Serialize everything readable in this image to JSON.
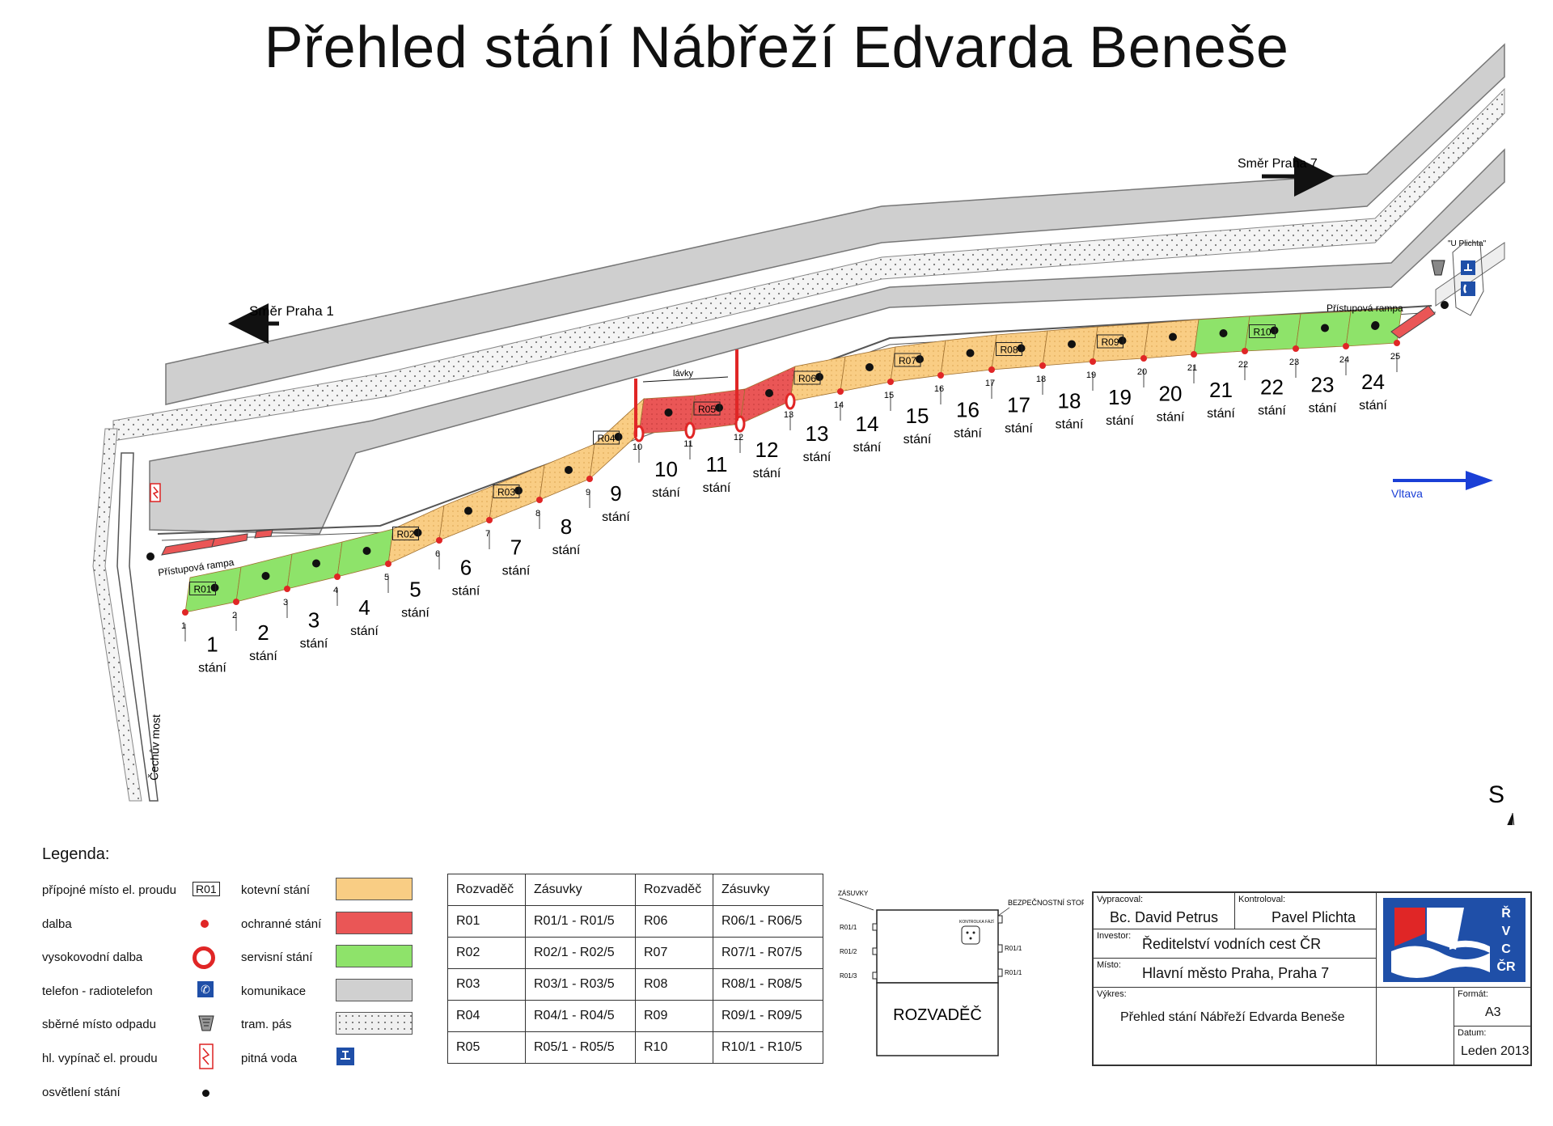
{
  "title": "Přehled stání Nábřeží Edvarda Beneše",
  "map_labels": {
    "direction_praha1": "Směr Praha 1",
    "direction_praha7": "Směr Praha 7",
    "ramp": "Přístupová rampa",
    "footbridges": "lávky",
    "river": "Vltava",
    "bridge": "Čechův most",
    "u_plichta": "\"U Plichta\"",
    "north": "S",
    "stani_word": "stání"
  },
  "berths": [
    {
      "n": "1",
      "kind": "service"
    },
    {
      "n": "2",
      "kind": "service"
    },
    {
      "n": "3",
      "kind": "service"
    },
    {
      "n": "4",
      "kind": "service"
    },
    {
      "n": "5",
      "kind": "anchor"
    },
    {
      "n": "6",
      "kind": "anchor"
    },
    {
      "n": "7",
      "kind": "anchor"
    },
    {
      "n": "8",
      "kind": "anchor"
    },
    {
      "n": "9",
      "kind": "anchor"
    },
    {
      "n": "10",
      "kind": "protect"
    },
    {
      "n": "11",
      "kind": "protect"
    },
    {
      "n": "12",
      "kind": "protect"
    },
    {
      "n": "13",
      "kind": "anchor"
    },
    {
      "n": "14",
      "kind": "anchor"
    },
    {
      "n": "15",
      "kind": "anchor"
    },
    {
      "n": "16",
      "kind": "anchor"
    },
    {
      "n": "17",
      "kind": "anchor"
    },
    {
      "n": "18",
      "kind": "anchor"
    },
    {
      "n": "19",
      "kind": "anchor"
    },
    {
      "n": "20",
      "kind": "anchor"
    },
    {
      "n": "21",
      "kind": "service"
    },
    {
      "n": "22",
      "kind": "service"
    },
    {
      "n": "23",
      "kind": "service"
    },
    {
      "n": "24",
      "kind": "service"
    }
  ],
  "dalba_numbers": [
    "1",
    "2",
    "3",
    "4",
    "5",
    "6",
    "7",
    "8",
    "9",
    "10",
    "11",
    "12",
    "13",
    "14",
    "15",
    "16",
    "17",
    "18",
    "19",
    "20",
    "21",
    "22",
    "23",
    "24",
    "25"
  ],
  "distributor_boxes": [
    "R01",
    "R02",
    "R03",
    "R04",
    "R05",
    "R06",
    "R07",
    "R08",
    "R09",
    "R10"
  ],
  "legend": {
    "heading": "Legenda:",
    "left": [
      {
        "label": "přípojné místo el. proudu",
        "icon": "distributor-box-icon",
        "symbol": "R01"
      },
      {
        "label": "dalba",
        "icon": "dalba-dot-icon"
      },
      {
        "label": "vysokovodní dalba",
        "icon": "ring-icon"
      },
      {
        "label": "telefon - radiotelefon",
        "icon": "phone-icon"
      },
      {
        "label": "sběrné místo odpadu",
        "icon": "bin-icon"
      },
      {
        "label": "hl. vypínač el. proudu",
        "icon": "main-switch-icon"
      },
      {
        "label": "osvětlení stání",
        "icon": "light-dot-icon"
      }
    ],
    "right": [
      {
        "label": "kotevní stání",
        "color": "#f9cd84"
      },
      {
        "label": "ochranné stání",
        "color": "#ea5656"
      },
      {
        "label": "servisní stání",
        "color": "#8ee36a"
      },
      {
        "label": "komunikace",
        "color": "#d0d0d0"
      },
      {
        "label": "tram. pás",
        "color": "#e8e8e8"
      },
      {
        "label": "pitná voda",
        "icon": "water-tap-icon"
      }
    ]
  },
  "distributor_table": {
    "headers": [
      "Rozvaděč",
      "Zásuvky",
      "Rozvaděč",
      "Zásuvky"
    ],
    "rows": [
      [
        "R01",
        "R01/1  -  R01/5",
        "R06",
        "R06/1  -  R06/5"
      ],
      [
        "R02",
        "R02/1  -  R02/5",
        "R07",
        "R07/1  -  R07/5"
      ],
      [
        "R03",
        "R03/1  -  R03/5",
        "R08",
        "R08/1  -  R08/5"
      ],
      [
        "R04",
        "R04/1  -  R04/5",
        "R09",
        "R09/1  -  R09/5"
      ],
      [
        "R05",
        "R05/1  -  R05/5",
        "R10",
        "R10/1  -  R10/5"
      ]
    ]
  },
  "switchboard": {
    "sockets_label": "ZÁSUVKY",
    "safety_stop": "BEZPEČNOSTNÍ STOP",
    "control_label": "KONTROLKA FÁZÍ",
    "left_sockets": [
      "R01/1",
      "R01/2",
      "R01/3"
    ],
    "right_sockets": [
      "R01/1",
      "R01/1"
    ],
    "name": "ROZVADĚČ"
  },
  "title_block": {
    "drawn_by_label": "Vypracoval:",
    "drawn_by": "Bc. David Petrus",
    "checked_label": "Kontroloval:",
    "checked": "Pavel Plichta",
    "investor_label": "Investor:",
    "investor": "Ředitelství vodních cest ČR",
    "place_label": "Místo:",
    "place": "Hlavní město Praha, Praha 7",
    "drawing_label": "Výkres:",
    "drawing": "Přehled stání Nábřeží Edvarda Beneše",
    "format_label": "Formát:",
    "format": "A3",
    "date_label": "Datum:",
    "date": "Leden 2013",
    "logo_letters": [
      "Ř",
      "V",
      "C",
      "ČR"
    ]
  },
  "colors": {
    "anchor": "#f9cd84",
    "protect": "#ea5656",
    "service": "#8ee36a",
    "road": "#d0d0d0",
    "river_arrow": "#1a3fd6",
    "logo_blue": "#1f4fa8",
    "logo_red": "#e02626"
  }
}
